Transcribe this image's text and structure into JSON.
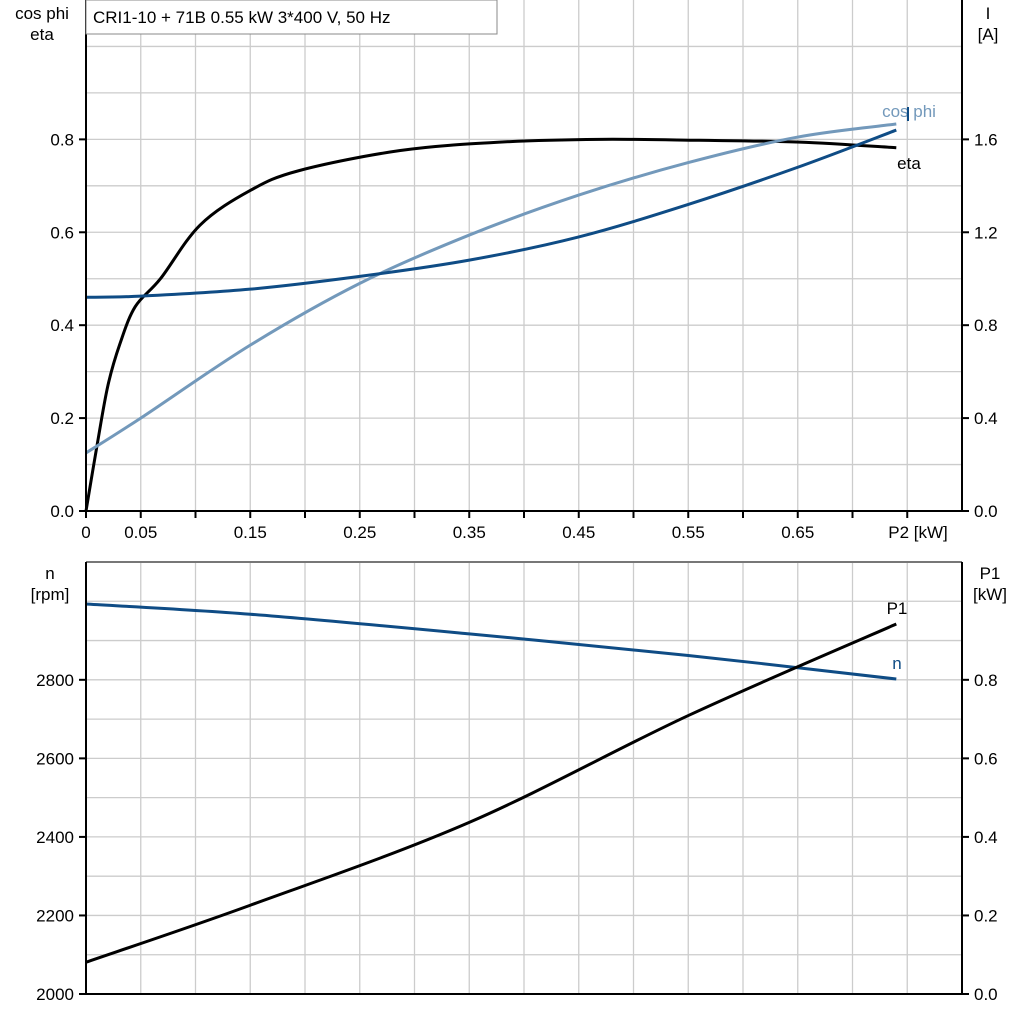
{
  "title": "CRI1-10 + 71B   0.55 kW   3*400 V, 50 Hz",
  "colors": {
    "eta": "#000000",
    "cos_phi": "#7399bb",
    "I": "#0f4c85",
    "n": "#0f4c85",
    "P1": "#000000",
    "grid": "#cccccc"
  },
  "chart_data": [
    {
      "type": "line",
      "grid": true,
      "xlabel": "P2 [kW]",
      "xlim": [
        0,
        0.8
      ],
      "xticks": [
        "0",
        "0.05",
        "0.15",
        "0.25",
        "0.35",
        "0.45",
        "0.55",
        "0.65"
      ],
      "ylabel_left": [
        "cos phi",
        "eta"
      ],
      "ylim_left": [
        0,
        1.1
      ],
      "yticks_left": [
        "0.0",
        "0.2",
        "0.4",
        "0.6",
        "0.8"
      ],
      "ylabel_right": [
        "I",
        "[A]"
      ],
      "ylim_right": [
        0,
        2.2
      ],
      "yticks_right": [
        "0.0",
        "0.4",
        "0.8",
        "1.2",
        "1.6"
      ],
      "series": [
        {
          "name": "eta",
          "axis": "left",
          "x": [
            0,
            0.01,
            0.02,
            0.031,
            0.045,
            0.068,
            0.104,
            0.15,
            0.195,
            0.287,
            0.378,
            0.469,
            0.56,
            0.652,
            0.74
          ],
          "y": [
            0,
            0.14,
            0.27,
            0.36,
            0.44,
            0.5,
            0.615,
            0.69,
            0.733,
            0.776,
            0.794,
            0.8,
            0.798,
            0.794,
            0.782
          ]
        },
        {
          "name": "cos phi",
          "axis": "left",
          "x": [
            0,
            0.05,
            0.15,
            0.25,
            0.35,
            0.45,
            0.55,
            0.65,
            0.74
          ],
          "y": [
            0.125,
            0.2,
            0.357,
            0.49,
            0.594,
            0.68,
            0.75,
            0.805,
            0.833
          ]
        },
        {
          "name": "I",
          "axis": "right",
          "x": [
            0,
            0.05,
            0.15,
            0.25,
            0.35,
            0.45,
            0.55,
            0.65,
            0.74
          ],
          "y": [
            0.92,
            0.925,
            0.955,
            1.01,
            1.08,
            1.18,
            1.32,
            1.48,
            1.64
          ]
        }
      ]
    },
    {
      "type": "line",
      "grid": true,
      "xlim": [
        0,
        0.8
      ],
      "ylabel_left": [
        "n",
        "[rpm]"
      ],
      "ylim_left": [
        2000,
        3100
      ],
      "yticks_left": [
        "2000",
        "2200",
        "2400",
        "2600",
        "2800"
      ],
      "ylabel_right": [
        "P1",
        "[kW]"
      ],
      "ylim_right": [
        0,
        1.1
      ],
      "yticks_right": [
        "0.0",
        "0.2",
        "0.4",
        "0.6",
        "0.8"
      ],
      "series": [
        {
          "name": "n",
          "axis": "left",
          "x": [
            0,
            0.15,
            0.35,
            0.55,
            0.74
          ],
          "y": [
            2993,
            2967,
            2917,
            2862,
            2802
          ]
        },
        {
          "name": "P1",
          "axis": "right",
          "x": [
            0,
            0.15,
            0.35,
            0.55,
            0.74
          ],
          "y": [
            0.081,
            0.226,
            0.437,
            0.709,
            0.942
          ]
        }
      ]
    }
  ]
}
